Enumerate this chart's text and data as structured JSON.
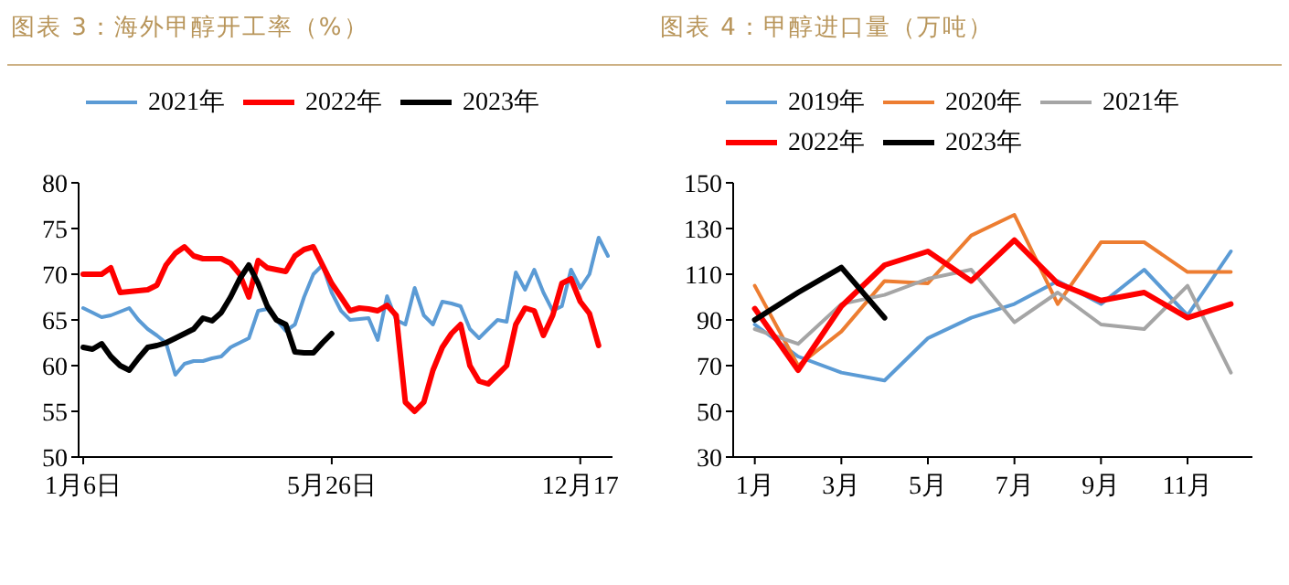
{
  "chart_data": [
    {
      "type": "line",
      "title": "图表 3：海外甲醇开工率（%）",
      "legend": "top",
      "categories": [
        "1月6日",
        null,
        null,
        null,
        null,
        null,
        null,
        null,
        null,
        null,
        null,
        null,
        null,
        null,
        null,
        null,
        null,
        null,
        null,
        null,
        null,
        null,
        null,
        null,
        null,
        null,
        null,
        "5月26日",
        null,
        null,
        null,
        null,
        null,
        null,
        null,
        null,
        null,
        null,
        null,
        null,
        null,
        null,
        null,
        null,
        null,
        null,
        null,
        null,
        null,
        null,
        null,
        null,
        null,
        null,
        "12月17",
        null,
        null,
        null
      ],
      "ylim": [
        50,
        80
      ],
      "yticks": [
        50,
        55,
        60,
        65,
        70,
        75,
        80
      ],
      "series": [
        {
          "name": "2021年",
          "color": "#5b9bd5",
          "values": [
            66.3,
            65.8,
            65.3,
            65.5,
            65.9,
            66.3,
            65,
            64,
            63.3,
            62.5,
            59,
            60.2,
            60.5,
            60.5,
            60.8,
            61,
            62,
            62.5,
            63,
            66,
            66.2,
            65,
            63.8,
            64.5,
            67.5,
            70,
            71,
            68,
            66,
            65,
            65.1,
            65.2,
            62.8,
            67.6,
            65,
            64.5,
            68.5,
            65.5,
            64.5,
            67,
            66.8,
            66.5,
            64,
            63,
            64,
            65,
            64.8,
            70.2,
            68.3,
            70.5,
            68,
            66,
            66.5,
            70.5,
            68.5,
            70,
            74,
            72
          ]
        },
        {
          "name": "2022年",
          "color": "#ff0000",
          "values": [
            70,
            70,
            70,
            70.7,
            68,
            68.1,
            68.2,
            68.3,
            68.8,
            71,
            72.3,
            73,
            72,
            71.7,
            71.7,
            71.7,
            71.2,
            70,
            67.5,
            71.5,
            70.7,
            70.5,
            70.3,
            72,
            72.7,
            73,
            71,
            69,
            67.5,
            66,
            66.3,
            66.2,
            66,
            66.6,
            65.5,
            56,
            55,
            56,
            59.5,
            62,
            63.5,
            64.5,
            60,
            58.3,
            58,
            59,
            60,
            64.5,
            66.3,
            66,
            63.3,
            65.5,
            69,
            69.5,
            67,
            65.7,
            62.2,
            null
          ]
        },
        {
          "name": "2023年",
          "color": "#000000",
          "values": [
            62,
            61.8,
            62.4,
            61,
            60,
            59.5,
            60.8,
            62,
            62.2,
            62.5,
            63,
            63.5,
            64,
            65.2,
            64.9,
            65.8,
            67.5,
            69.5,
            71,
            69,
            66.5,
            65,
            64.5,
            61.5,
            61.4,
            61.4,
            62.5,
            63.5,
            null,
            null,
            null,
            null,
            null,
            null,
            null,
            null,
            null,
            null,
            null,
            null,
            null,
            null,
            null,
            null,
            null,
            null,
            null,
            null,
            null,
            null,
            null,
            null,
            null,
            null,
            null,
            null,
            null,
            null
          ]
        }
      ]
    },
    {
      "type": "line",
      "title": "图表 4：甲醇进口量（万吨）",
      "legend": "top",
      "categories": [
        "1月",
        null,
        "3月",
        null,
        "5月",
        null,
        "7月",
        null,
        "9月",
        null,
        "11月",
        null
      ],
      "ylim": [
        30,
        150
      ],
      "yticks": [
        30,
        50,
        70,
        90,
        110,
        130,
        150
      ],
      "series": [
        {
          "name": "2019年",
          "color": "#5b9bd5",
          "values": [
            88,
            74,
            67,
            63.5,
            82,
            91,
            97,
            107,
            97,
            112,
            92,
            120
          ]
        },
        {
          "name": "2020年",
          "color": "#ed7d31",
          "values": [
            105,
            70,
            85,
            107,
            106,
            127,
            136,
            97,
            124,
            124,
            111,
            111
          ]
        },
        {
          "name": "2021年",
          "color": "#a5a5a5",
          "values": [
            86,
            79.5,
            97,
            101,
            108,
            112,
            89,
            102,
            88,
            86,
            105,
            67
          ]
        },
        {
          "name": "2022年",
          "color": "#ff0000",
          "values": [
            95,
            68,
            96,
            114,
            120,
            107,
            125,
            106,
            98.5,
            102,
            91,
            97
          ]
        },
        {
          "name": "2023年",
          "color": "#000000",
          "values": [
            90,
            102,
            113,
            91,
            null,
            null,
            null,
            null,
            null,
            null,
            null,
            null
          ]
        }
      ]
    }
  ]
}
